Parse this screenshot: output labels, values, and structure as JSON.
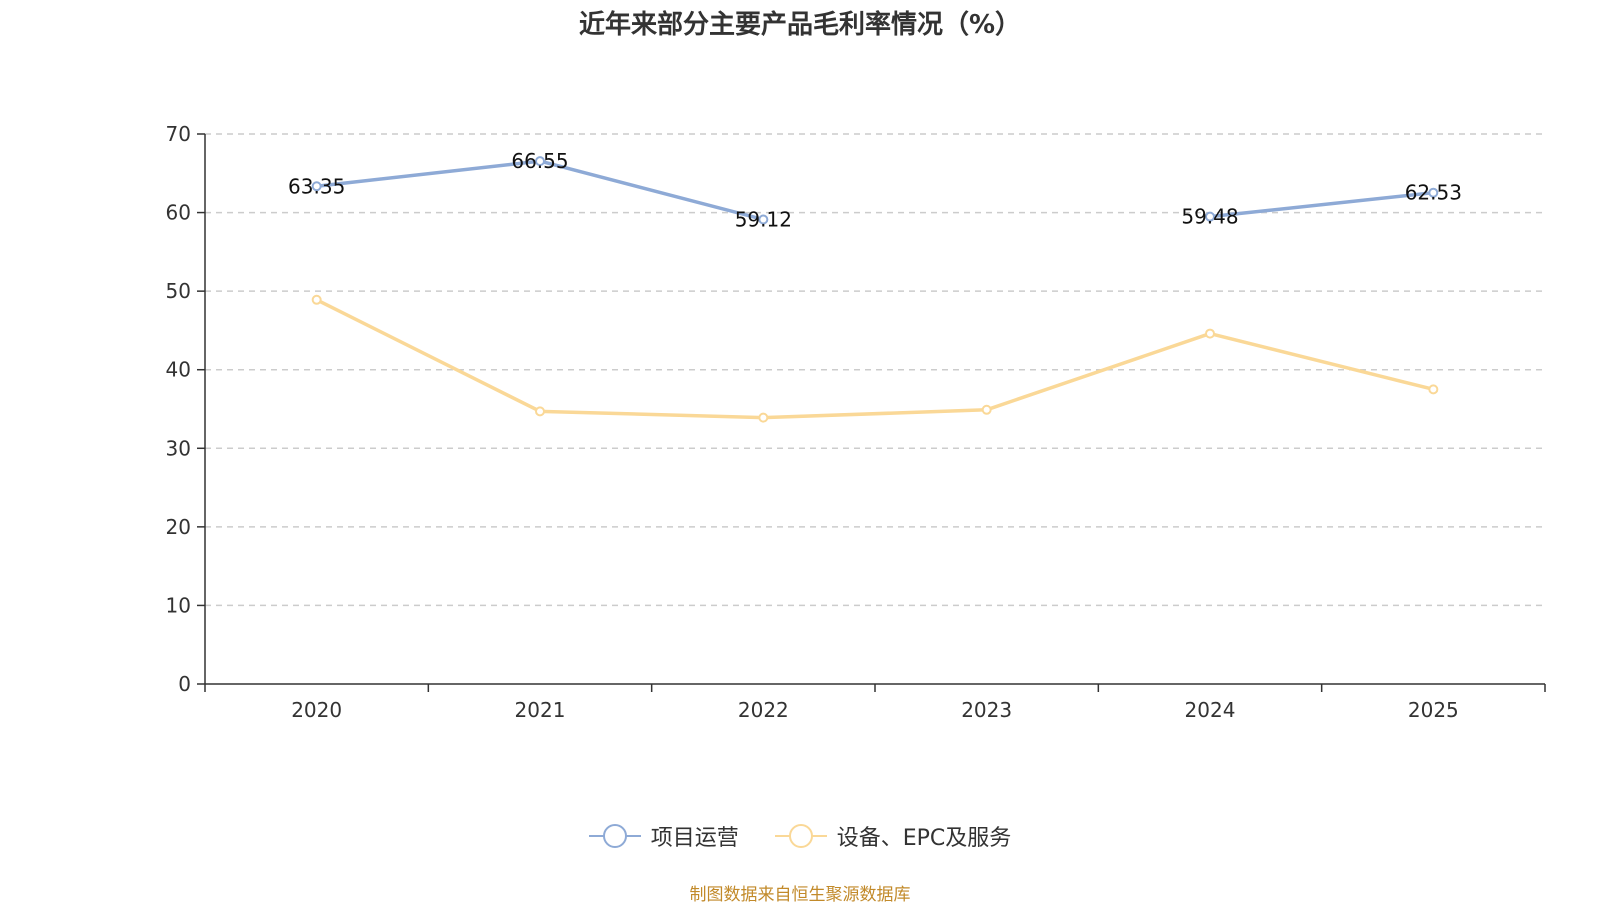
{
  "chart_data": {
    "type": "line",
    "title": "近年来部分主要产品毛利率情况（%）",
    "categories": [
      "2020",
      "2021",
      "2022",
      "2023",
      "2024",
      "2025"
    ],
    "ylim": [
      0,
      70
    ],
    "yticks": [
      "0",
      "10",
      "20",
      "30",
      "40",
      "50",
      "60",
      "70"
    ],
    "grid": true,
    "legend_position": "bottom",
    "series": [
      {
        "name": "项目运营",
        "color": "#8eaad6",
        "values": [
          63.35,
          66.55,
          59.12,
          null,
          59.48,
          62.53
        ],
        "labels": [
          "63.35",
          "66.55",
          "59.12",
          "",
          "59.48",
          "62.53"
        ]
      },
      {
        "name": "设备、EPC及服务",
        "color": "#fad897",
        "values": [
          48.9,
          34.7,
          33.9,
          34.9,
          44.6,
          37.5
        ],
        "labels": [
          "",
          "",
          "",
          "",
          "",
          ""
        ]
      }
    ]
  },
  "source": "制图数据来自恒生聚源数据库"
}
